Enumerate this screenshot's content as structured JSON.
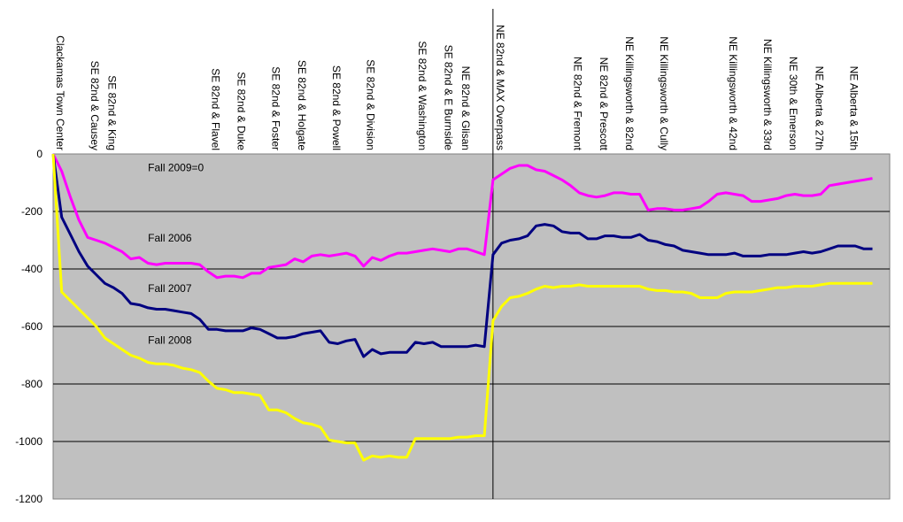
{
  "chart_data": {
    "type": "line",
    "title": "",
    "xlabel": "",
    "ylabel": "",
    "ylim": [
      -1200,
      0
    ],
    "yticks": [
      0,
      -200,
      -400,
      -600,
      -800,
      -1000,
      -1200
    ],
    "grid": true,
    "legend": "none",
    "plot_background": "#c0c0c0",
    "divider_at_category": "NE 82nd & MAX Overpass",
    "categories": [
      {
        "label": "Clackamas Town Center",
        "x": 0
      },
      {
        "label": "SE 82nd & Causey",
        "x": 4
      },
      {
        "label": "SE 82nd & King",
        "x": 6
      },
      {
        "label": "SE 82nd & Flavel",
        "x": 18
      },
      {
        "label": "SE 82nd & Duke",
        "x": 21
      },
      {
        "label": "SE 82nd & Foster",
        "x": 25
      },
      {
        "label": "SE 82nd & Holgate",
        "x": 28
      },
      {
        "label": "SE 82nd & Powell",
        "x": 32
      },
      {
        "label": "SE 82nd & Division",
        "x": 36
      },
      {
        "label": "SE 82nd & Washington",
        "x": 42
      },
      {
        "label": "SE 82nd & E Burnside",
        "x": 45
      },
      {
        "label": "NE 82nd & Glisan",
        "x": 47
      },
      {
        "label": "NE 82nd & MAX Overpass",
        "x": 51
      },
      {
        "label": "NE 82nd & Fremont",
        "x": 60
      },
      {
        "label": "NE 82nd & Prescott",
        "x": 63
      },
      {
        "label": "NE Killingsworth & 82nd",
        "x": 66
      },
      {
        "label": "NE Killingsworth & Cully",
        "x": 70
      },
      {
        "label": "NE Killingsworth & 42nd",
        "x": 78
      },
      {
        "label": "NE Killingsworth & 33rd",
        "x": 82
      },
      {
        "label": "NE 30th & Emerson",
        "x": 85
      },
      {
        "label": "NE Alberta & 27th",
        "x": 88
      },
      {
        "label": "NE Alberta & 15th",
        "x": 92
      }
    ],
    "x_range": [
      0,
      97
    ],
    "series": [
      {
        "name": "Fall 2006",
        "color": "#ff00ff",
        "points": [
          [
            0,
            0
          ],
          [
            1,
            -60
          ],
          [
            2,
            -150
          ],
          [
            3,
            -230
          ],
          [
            4,
            -290
          ],
          [
            5,
            -300
          ],
          [
            6,
            -310
          ],
          [
            7,
            -325
          ],
          [
            8,
            -340
          ],
          [
            9,
            -365
          ],
          [
            10,
            -360
          ],
          [
            11,
            -380
          ],
          [
            12,
            -385
          ],
          [
            13,
            -380
          ],
          [
            14,
            -380
          ],
          [
            15,
            -380
          ],
          [
            16,
            -380
          ],
          [
            17,
            -385
          ],
          [
            18,
            -410
          ],
          [
            19,
            -430
          ],
          [
            20,
            -425
          ],
          [
            21,
            -425
          ],
          [
            22,
            -430
          ],
          [
            23,
            -415
          ],
          [
            24,
            -415
          ],
          [
            25,
            -395
          ],
          [
            26,
            -390
          ],
          [
            27,
            -385
          ],
          [
            28,
            -365
          ],
          [
            29,
            -375
          ],
          [
            30,
            -355
          ],
          [
            31,
            -350
          ],
          [
            32,
            -355
          ],
          [
            33,
            -350
          ],
          [
            34,
            -345
          ],
          [
            35,
            -355
          ],
          [
            36,
            -390
          ],
          [
            37,
            -360
          ],
          [
            38,
            -370
          ],
          [
            39,
            -355
          ],
          [
            40,
            -345
          ],
          [
            41,
            -345
          ],
          [
            42,
            -340
          ],
          [
            43,
            -335
          ],
          [
            44,
            -330
          ],
          [
            45,
            -335
          ],
          [
            46,
            -340
          ],
          [
            47,
            -330
          ],
          [
            48,
            -330
          ],
          [
            49,
            -340
          ],
          [
            50,
            -350
          ],
          [
            51,
            -90
          ],
          [
            52,
            -70
          ],
          [
            53,
            -50
          ],
          [
            54,
            -40
          ],
          [
            55,
            -40
          ],
          [
            56,
            -55
          ],
          [
            57,
            -60
          ],
          [
            58,
            -75
          ],
          [
            59,
            -90
          ],
          [
            60,
            -110
          ],
          [
            61,
            -135
          ],
          [
            62,
            -145
          ],
          [
            63,
            -150
          ],
          [
            64,
            -145
          ],
          [
            65,
            -135
          ],
          [
            66,
            -135
          ],
          [
            67,
            -140
          ],
          [
            68,
            -140
          ],
          [
            69,
            -195
          ],
          [
            70,
            -190
          ],
          [
            71,
            -190
          ],
          [
            72,
            -195
          ],
          [
            73,
            -195
          ],
          [
            74,
            -190
          ],
          [
            75,
            -185
          ],
          [
            76,
            -165
          ],
          [
            77,
            -140
          ],
          [
            78,
            -135
          ],
          [
            79,
            -140
          ],
          [
            80,
            -145
          ],
          [
            81,
            -165
          ],
          [
            82,
            -165
          ],
          [
            83,
            -160
          ],
          [
            84,
            -155
          ],
          [
            85,
            -145
          ],
          [
            86,
            -140
          ],
          [
            87,
            -145
          ],
          [
            88,
            -145
          ],
          [
            89,
            -140
          ],
          [
            90,
            -110
          ],
          [
            91,
            -105
          ],
          [
            92,
            -100
          ],
          [
            93,
            -95
          ],
          [
            94,
            -90
          ],
          [
            95,
            -85
          ]
        ]
      },
      {
        "name": "Fall 2007",
        "color": "#000080",
        "points": [
          [
            0,
            0
          ],
          [
            1,
            -220
          ],
          [
            2,
            -280
          ],
          [
            3,
            -340
          ],
          [
            4,
            -390
          ],
          [
            5,
            -420
          ],
          [
            6,
            -450
          ],
          [
            7,
            -465
          ],
          [
            8,
            -485
          ],
          [
            9,
            -520
          ],
          [
            10,
            -525
          ],
          [
            11,
            -535
          ],
          [
            12,
            -540
          ],
          [
            13,
            -540
          ],
          [
            14,
            -545
          ],
          [
            15,
            -550
          ],
          [
            16,
            -555
          ],
          [
            17,
            -575
          ],
          [
            18,
            -610
          ],
          [
            19,
            -610
          ],
          [
            20,
            -615
          ],
          [
            21,
            -615
          ],
          [
            22,
            -615
          ],
          [
            23,
            -605
          ],
          [
            24,
            -610
          ],
          [
            25,
            -625
          ],
          [
            26,
            -640
          ],
          [
            27,
            -640
          ],
          [
            28,
            -635
          ],
          [
            29,
            -625
          ],
          [
            30,
            -620
          ],
          [
            31,
            -615
          ],
          [
            32,
            -655
          ],
          [
            33,
            -660
          ],
          [
            34,
            -650
          ],
          [
            35,
            -645
          ],
          [
            36,
            -705
          ],
          [
            37,
            -680
          ],
          [
            38,
            -695
          ],
          [
            39,
            -690
          ],
          [
            40,
            -690
          ],
          [
            41,
            -690
          ],
          [
            42,
            -655
          ],
          [
            43,
            -660
          ],
          [
            44,
            -655
          ],
          [
            45,
            -670
          ],
          [
            46,
            -670
          ],
          [
            47,
            -670
          ],
          [
            48,
            -670
          ],
          [
            49,
            -665
          ],
          [
            50,
            -670
          ],
          [
            51,
            -350
          ],
          [
            52,
            -310
          ],
          [
            53,
            -300
          ],
          [
            54,
            -295
          ],
          [
            55,
            -285
          ],
          [
            56,
            -250
          ],
          [
            57,
            -245
          ],
          [
            58,
            -250
          ],
          [
            59,
            -270
          ],
          [
            60,
            -275
          ],
          [
            61,
            -275
          ],
          [
            62,
            -295
          ],
          [
            63,
            -295
          ],
          [
            64,
            -285
          ],
          [
            65,
            -285
          ],
          [
            66,
            -290
          ],
          [
            67,
            -290
          ],
          [
            68,
            -280
          ],
          [
            69,
            -300
          ],
          [
            70,
            -305
          ],
          [
            71,
            -315
          ],
          [
            72,
            -320
          ],
          [
            73,
            -335
          ],
          [
            74,
            -340
          ],
          [
            75,
            -345
          ],
          [
            76,
            -350
          ],
          [
            77,
            -350
          ],
          [
            78,
            -350
          ],
          [
            79,
            -345
          ],
          [
            80,
            -355
          ],
          [
            81,
            -355
          ],
          [
            82,
            -355
          ],
          [
            83,
            -350
          ],
          [
            84,
            -350
          ],
          [
            85,
            -350
          ],
          [
            86,
            -345
          ],
          [
            87,
            -340
          ],
          [
            88,
            -345
          ],
          [
            89,
            -340
          ],
          [
            90,
            -330
          ],
          [
            91,
            -320
          ],
          [
            92,
            -320
          ],
          [
            93,
            -320
          ],
          [
            94,
            -330
          ],
          [
            95,
            -330
          ]
        ]
      },
      {
        "name": "Fall 2008",
        "color": "#ffff00",
        "points": [
          [
            0,
            0
          ],
          [
            1,
            -480
          ],
          [
            2,
            -510
          ],
          [
            3,
            -540
          ],
          [
            4,
            -570
          ],
          [
            5,
            -600
          ],
          [
            6,
            -640
          ],
          [
            7,
            -660
          ],
          [
            8,
            -680
          ],
          [
            9,
            -700
          ],
          [
            10,
            -710
          ],
          [
            11,
            -725
          ],
          [
            12,
            -730
          ],
          [
            13,
            -730
          ],
          [
            14,
            -735
          ],
          [
            15,
            -745
          ],
          [
            16,
            -750
          ],
          [
            17,
            -760
          ],
          [
            18,
            -790
          ],
          [
            19,
            -815
          ],
          [
            20,
            -820
          ],
          [
            21,
            -830
          ],
          [
            22,
            -830
          ],
          [
            23,
            -835
          ],
          [
            24,
            -840
          ],
          [
            25,
            -890
          ],
          [
            26,
            -890
          ],
          [
            27,
            -900
          ],
          [
            28,
            -920
          ],
          [
            29,
            -935
          ],
          [
            30,
            -940
          ],
          [
            31,
            -950
          ],
          [
            32,
            -995
          ],
          [
            33,
            -1000
          ],
          [
            34,
            -1005
          ],
          [
            35,
            -1005
          ],
          [
            36,
            -1065
          ],
          [
            37,
            -1050
          ],
          [
            38,
            -1055
          ],
          [
            39,
            -1050
          ],
          [
            40,
            -1055
          ],
          [
            41,
            -1055
          ],
          [
            42,
            -990
          ],
          [
            43,
            -990
          ],
          [
            44,
            -990
          ],
          [
            45,
            -990
          ],
          [
            46,
            -990
          ],
          [
            47,
            -985
          ],
          [
            48,
            -985
          ],
          [
            49,
            -980
          ],
          [
            50,
            -980
          ],
          [
            51,
            -580
          ],
          [
            52,
            -530
          ],
          [
            53,
            -500
          ],
          [
            54,
            -495
          ],
          [
            55,
            -485
          ],
          [
            56,
            -470
          ],
          [
            57,
            -460
          ],
          [
            58,
            -465
          ],
          [
            59,
            -460
          ],
          [
            60,
            -460
          ],
          [
            61,
            -455
          ],
          [
            62,
            -460
          ],
          [
            63,
            -460
          ],
          [
            64,
            -460
          ],
          [
            65,
            -460
          ],
          [
            66,
            -460
          ],
          [
            67,
            -460
          ],
          [
            68,
            -460
          ],
          [
            69,
            -470
          ],
          [
            70,
            -475
          ],
          [
            71,
            -475
          ],
          [
            72,
            -480
          ],
          [
            73,
            -480
          ],
          [
            74,
            -485
          ],
          [
            75,
            -500
          ],
          [
            76,
            -500
          ],
          [
            77,
            -500
          ],
          [
            78,
            -485
          ],
          [
            79,
            -480
          ],
          [
            80,
            -480
          ],
          [
            81,
            -480
          ],
          [
            82,
            -475
          ],
          [
            83,
            -470
          ],
          [
            84,
            -465
          ],
          [
            85,
            -465
          ],
          [
            86,
            -460
          ],
          [
            87,
            -460
          ],
          [
            88,
            -460
          ],
          [
            89,
            -455
          ],
          [
            90,
            -450
          ],
          [
            91,
            -450
          ],
          [
            92,
            -450
          ],
          [
            93,
            -450
          ],
          [
            94,
            -450
          ],
          [
            95,
            -450
          ]
        ]
      }
    ],
    "annotations": [
      {
        "text": "Fall 2009=0",
        "x": 11,
        "y": -60
      },
      {
        "text": "Fall 2006",
        "x": 11,
        "y": -305
      },
      {
        "text": "Fall 2007",
        "x": 11,
        "y": -480
      },
      {
        "text": "Fall 2008",
        "x": 11,
        "y": -660
      }
    ]
  }
}
